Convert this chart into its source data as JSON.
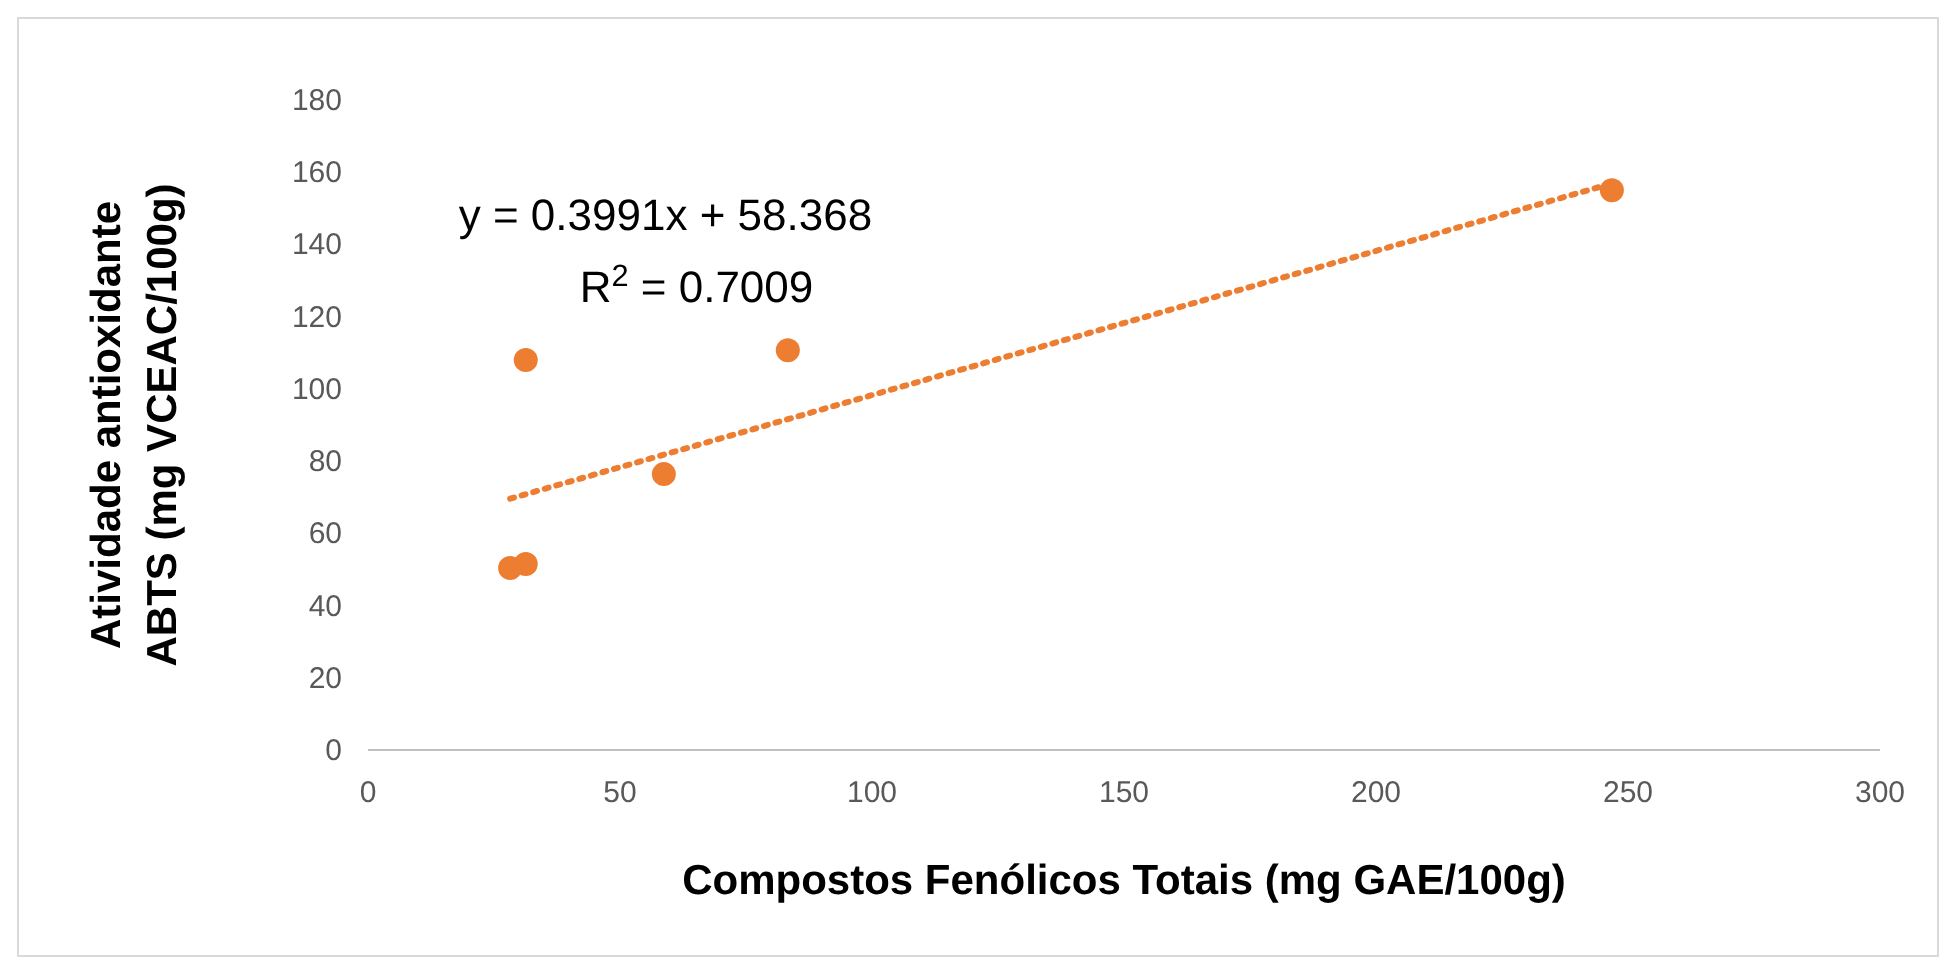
{
  "chart_data": {
    "type": "scatter",
    "xlabel": "Compostos Fenólicos Totais (mg GAE/100g)",
    "ylabel": "Atividade antioxidante\nABTS (mg VCEAC/100g)",
    "xlim": [
      0,
      300
    ],
    "xticks": [
      0,
      50,
      100,
      150,
      200,
      250,
      300
    ],
    "ylim": [
      0,
      180
    ],
    "yticks": [
      0,
      20,
      40,
      60,
      80,
      100,
      120,
      140,
      160,
      180
    ],
    "grid": false,
    "annotations": [
      "y = 0.3991x + 58.368",
      "R$^{2}$ = 0.7009"
    ],
    "series": [
      {
        "color": "#ed7d31",
        "marker": "circle",
        "x": [
          28.2,
          31.3,
          31.3,
          58.7,
          83.3,
          246.8
        ],
        "values": [
          50.4,
          51.5,
          108,
          76.4,
          110.7,
          155
        ]
      },
      {
        "type": "line",
        "color": "#ed7d31",
        "line_style": "dotted",
        "marker": "none",
        "x": [
          28.2,
          246.8
        ],
        "values": [
          69.6,
          156.9
        ]
      }
    ]
  }
}
